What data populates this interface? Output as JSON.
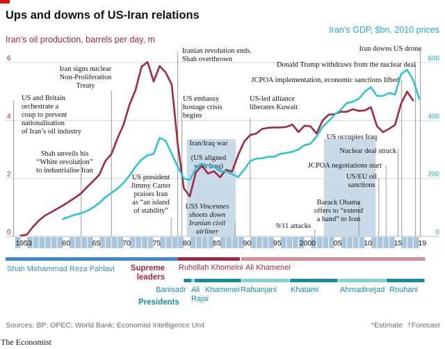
{
  "title": "Ups and downs of US-Iran relations",
  "left_axis_title": "Iran’s oil production, barrels per day, m",
  "right_axis_title": "Iran’s GDP, $bn, 2010 prices",
  "source": "Sources: BP; OPEC; World Bank; Economist Intelligence Unit",
  "notes": {
    "estimate": "*Estimate",
    "forecast": "†Forecast"
  },
  "logo": "The Economist",
  "colors": {
    "oil": "#a1283f",
    "gdp": "#2cc3d9",
    "shade": "#c9dbe8",
    "axis_strip": "#a9c6dc"
  },
  "chart_data": {
    "type": "line",
    "title": "Ups and downs of US-Iran relations",
    "x_range": [
      1952,
      2020
    ],
    "x_tick_labels": [
      {
        "year": 1953,
        "label": "1953"
      },
      {
        "year": 1960,
        "label": "60"
      },
      {
        "year": 1965,
        "label": "65"
      },
      {
        "year": 1970,
        "label": "70"
      },
      {
        "year": 1975,
        "label": "75"
      },
      {
        "year": 1980,
        "label": "80"
      },
      {
        "year": 1985,
        "label": "85"
      },
      {
        "year": 1990,
        "label": "90"
      },
      {
        "year": 1995,
        "label": "95"
      },
      {
        "year": 2000,
        "label": "2000"
      },
      {
        "year": 2005,
        "label": "05"
      },
      {
        "year": 2010,
        "label": "10"
      },
      {
        "year": 2015,
        "label": "15"
      },
      {
        "year": 2019,
        "label": "19"
      }
    ],
    "left_axis": {
      "label": "Iran’s oil production, barrels per day, m",
      "range": [
        0,
        6
      ],
      "ticks": [
        0,
        2,
        4,
        6
      ]
    },
    "right_axis": {
      "label": "Iran’s GDP, $bn, 2010 prices",
      "range": [
        0,
        600
      ],
      "ticks": [
        0,
        200,
        400,
        600
      ]
    },
    "series": [
      {
        "name": "Iran’s oil production, barrels per day, m",
        "axis": "left",
        "color": "#a1283f",
        "x": [
          1953,
          1954,
          1955,
          1956,
          1957,
          1958,
          1959,
          1960,
          1961,
          1962,
          1963,
          1964,
          1965,
          1966,
          1967,
          1968,
          1969,
          1970,
          1971,
          1972,
          1973,
          1974,
          1975,
          1976,
          1977,
          1978,
          1979,
          1980,
          1981,
          1982,
          1983,
          1984,
          1985,
          1986,
          1987,
          1988,
          1989,
          1990,
          1991,
          1992,
          1993,
          1994,
          1995,
          1996,
          1997,
          1998,
          1999,
          2000,
          2001,
          2002,
          2003,
          2004,
          2005,
          2006,
          2007,
          2008,
          2009,
          2010,
          2011,
          2012,
          2013,
          2014,
          2015,
          2016,
          2017,
          2018,
          2019
        ],
        "values": [
          0.03,
          0.06,
          0.33,
          0.55,
          0.72,
          0.83,
          0.95,
          1.07,
          1.2,
          1.34,
          1.49,
          1.71,
          1.91,
          2.13,
          2.6,
          2.84,
          3.38,
          3.85,
          4.54,
          5.05,
          5.86,
          6.02,
          5.35,
          5.88,
          5.66,
          5.24,
          3.17,
          1.66,
          1.38,
          2.21,
          2.44,
          2.17,
          2.25,
          2.04,
          2.3,
          2.24,
          2.81,
          3.27,
          3.5,
          3.55,
          3.71,
          3.75,
          3.76,
          3.76,
          3.78,
          3.86,
          3.6,
          3.82,
          3.8,
          3.55,
          4.0,
          4.2,
          4.22,
          4.3,
          4.3,
          4.39,
          4.33,
          4.35,
          4.46,
          3.81,
          3.6,
          3.71,
          3.85,
          4.58,
          5.0,
          4.69,
          null
        ]
      },
      {
        "name": "Iran’s GDP, $bn, 2010 prices",
        "axis": "right",
        "color": "#2cc3d9",
        "x": [
          1960,
          1961,
          1962,
          1963,
          1964,
          1965,
          1966,
          1967,
          1968,
          1969,
          1970,
          1971,
          1972,
          1973,
          1974,
          1975,
          1976,
          1977,
          1978,
          1979,
          1980,
          1981,
          1982,
          1983,
          1984,
          1985,
          1986,
          1987,
          1988,
          1989,
          1990,
          1991,
          1992,
          1993,
          1994,
          1995,
          1996,
          1997,
          1998,
          1999,
          2000,
          2001,
          2002,
          2003,
          2004,
          2005,
          2006,
          2007,
          2008,
          2009,
          2010,
          2011,
          2012,
          2013,
          2014,
          2015,
          2016,
          2017,
          2018,
          2019
        ],
        "values": [
          60,
          68,
          75,
          80,
          88,
          100,
          115,
          135,
          150,
          165,
          185,
          210,
          240,
          265,
          280,
          285,
          340,
          330,
          285,
          240,
          200,
          195,
          235,
          250,
          245,
          240,
          225,
          225,
          215,
          205,
          230,
          260,
          268,
          270,
          275,
          275,
          285,
          288,
          292,
          300,
          315,
          320,
          345,
          378,
          398,
          420,
          437,
          460,
          465,
          475,
          500,
          515,
          485,
          485,
          495,
          490,
          560,
          575,
          540,
          475
        ]
      }
    ]
  },
  "annotations": [
    {
      "id": "oil-nationalisation",
      "year": 1951.8,
      "lines": [
        "US and Britain",
        "orchestrate a",
        "coup to prevent",
        "nationalisation",
        "of Iran’s oil industry"
      ],
      "y_top": 145,
      "y_bottom": 340
    },
    {
      "id": "white-revolution",
      "year": 1963,
      "lines": [
        "Shah unveils his",
        "“White revolution”",
        "to industrialise Iran"
      ],
      "y_top": 227,
      "y_bottom": 340
    },
    {
      "id": "non-proliferation",
      "year": 1968,
      "lines": [
        "Iran signs nuclear",
        "Non-Proliferation",
        "Treaty"
      ],
      "y_top": 130,
      "y_bottom": 340
    },
    {
      "id": "carter",
      "year": 1977.9,
      "lines": [
        "US president",
        "Jimmy Carter",
        "praises Iran",
        "as “an island",
        "of stability”"
      ],
      "y_top": 313,
      "y_bottom": 340
    },
    {
      "id": "revolution",
      "year": 1979,
      "lines": [
        "Iranian revolution ends.",
        "Shah overthrown"
      ],
      "y_top": 75,
      "y_bottom": 340
    },
    {
      "id": "hostage",
      "year": 1979.7,
      "lines": [
        "US embassy",
        "hostage crisis",
        "begins"
      ],
      "y_top": 148,
      "y_bottom": 340
    },
    {
      "id": "iran-iraq",
      "year": 1980.5,
      "lines": [
        "Iran/Iraq war"
      ],
      "y_top": 200,
      "y_bottom": 200
    },
    {
      "id": "us-aligned",
      "year": 1984,
      "lines": [
        "(US aligned",
        "with Iraq)"
      ],
      "y_top": 230,
      "y_bottom": 230
    },
    {
      "id": "vincennes",
      "year": 1988.5,
      "lines": [
        "USS Vincennes",
        "shoots down",
        "Iranian civil",
        "airliner"
      ],
      "y_top": 320,
      "y_bottom": 340
    },
    {
      "id": "kuwait",
      "year": 1991,
      "lines": [
        "US-led alliance",
        "liberates Kuwait"
      ],
      "y_top": 170,
      "y_bottom": 340
    },
    {
      "id": "nine-eleven",
      "year": 2001.7,
      "lines": [
        "9/11 attacks"
      ],
      "y_top": 330,
      "y_bottom": 340
    },
    {
      "id": "occupies-iraq",
      "year": 2003.2,
      "lines": [
        "US occupies Iraq"
      ],
      "y_top": 203,
      "y_bottom": 203
    },
    {
      "id": "obama",
      "year": 2009,
      "lines": [
        "Barack Obama",
        "offers to “extend",
        "a hand” to Iran"
      ],
      "y_top": 290,
      "y_bottom": 340
    },
    {
      "id": "sanctions",
      "year": 2012.3,
      "lines": [
        "US/EU oil",
        "sanctions"
      ],
      "y_top": 256,
      "y_bottom": 340
    },
    {
      "id": "jcpoa-negotiations",
      "year": 2013.5,
      "lines": [
        "JCPOA negotiations start"
      ],
      "y_top": 238,
      "y_bottom": 340
    },
    {
      "id": "deal-struck",
      "year": 2015.5,
      "lines": [
        "Nuclear deal struck"
      ],
      "y_top": 214,
      "y_bottom": 340
    },
    {
      "id": "jcpoa-implementation",
      "year": 2016.1,
      "lines": [
        "JCPOA implementation, economic sanctions lifted"
      ],
      "y_top": 115,
      "y_bottom": 340
    },
    {
      "id": "trump",
      "year": 2018.4,
      "lines": [
        "Donald Trump withdraws from the nuclear deal"
      ],
      "y_top": 93,
      "y_bottom": 340
    },
    {
      "id": "drone",
      "year": 2019.2,
      "lines": [
        "Iran downs US drone"
      ],
      "y_top": 71,
      "y_bottom": 340
    }
  ],
  "shaded_periods": [
    {
      "name": "Iran/Iraq war",
      "start": 1980.5,
      "end": 1988.6
    },
    {
      "name": "US occupies Iraq",
      "start": 2003.2,
      "end": 2011.8
    }
  ],
  "timeline": {
    "shah_label": "Shah Mohammad Reza Pahlavi",
    "supreme_leaders_label": [
      "Supreme",
      "leaders"
    ],
    "presidents_label": "Presidents",
    "shah": {
      "start": 1952,
      "end": 1979
    },
    "supreme_leaders": [
      {
        "name": "Ruhollah Khomeini",
        "start": 1979,
        "end": 1989.4
      },
      {
        "name": "Ali Khamenei",
        "start": 1989.4,
        "end": 2020
      }
    ],
    "presidents": [
      {
        "name": "Banisadr",
        "start": 1980,
        "end": 1981.4
      },
      {
        "name": "Ali Rajai",
        "start": 1981.4,
        "end": 1981.8,
        "lines": [
          "Ali",
          "Rajai"
        ]
      },
      {
        "name": "Khamenei",
        "start": 1981.8,
        "end": 1989.6
      },
      {
        "name": "Rafsanjani",
        "start": 1989.6,
        "end": 1997.6
      },
      {
        "name": "Khatami",
        "start": 1997.6,
        "end": 2005.6
      },
      {
        "name": "Ahmadinejad",
        "start": 2005.6,
        "end": 2013.6
      },
      {
        "name": "Rouhani",
        "start": 2013.6,
        "end": 2020
      }
    ]
  }
}
